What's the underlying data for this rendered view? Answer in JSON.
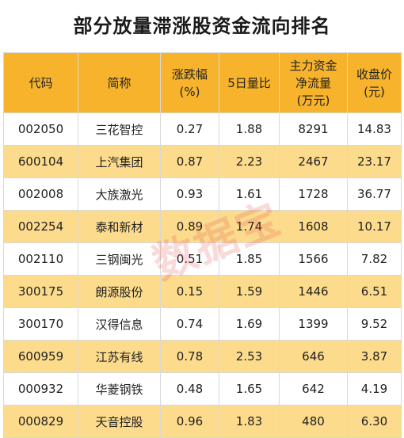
{
  "title": "部分放量滞涨股资金流向排名",
  "headers": [
    [
      "代码"
    ],
    [
      "简称"
    ],
    [
      "涨跌幅",
      "(%)"
    ],
    [
      "5日量比"
    ],
    [
      "主力资金",
      "净流量",
      "(万元)"
    ],
    [
      "收盘价",
      "(元)"
    ]
  ],
  "rows": [
    [
      "002050",
      "三花智控",
      "0.27",
      "1.88",
      "8291",
      "14.83"
    ],
    [
      "600104",
      "上汽集团",
      "0.87",
      "2.23",
      "2467",
      "23.17"
    ],
    [
      "002008",
      "大族激光",
      "0.93",
      "1.61",
      "1728",
      "36.77"
    ],
    [
      "002254",
      "泰和新材",
      "0.89",
      "1.74",
      "1608",
      "10.17"
    ],
    [
      "002110",
      "三钢闽光",
      "0.51",
      "1.85",
      "1566",
      "7.82"
    ],
    [
      "300175",
      "朗源股份",
      "0.15",
      "1.59",
      "1446",
      "6.51"
    ],
    [
      "300170",
      "汉得信息",
      "0.74",
      "1.69",
      "1399",
      "9.52"
    ],
    [
      "600959",
      "江苏有线",
      "0.78",
      "2.53",
      "646",
      "3.87"
    ],
    [
      "000932",
      "华菱钢铁",
      "0.48",
      "1.65",
      "642",
      "4.19"
    ],
    [
      "000829",
      "天音控股",
      "0.96",
      "1.83",
      "480",
      "6.30"
    ]
  ],
  "watermark": "数据宝",
  "colors": {
    "header_bg": "#f7b32b",
    "stripe_bg": "#fcdb8c",
    "watermark": "#e65050"
  }
}
